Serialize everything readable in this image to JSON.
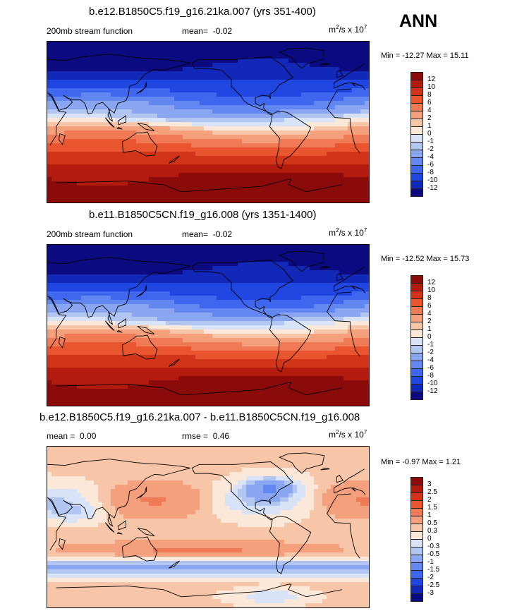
{
  "season": "ANN",
  "colors": {
    "mean_scale": [
      "#0b0a80",
      "#1128b8",
      "#1f46e0",
      "#3e66ef",
      "#6287f1",
      "#8aa6f0",
      "#b2c6f2",
      "#d8e3f7",
      "#fbe8d8",
      "#f7c6a8",
      "#f4a07c",
      "#f07a55",
      "#e8552f",
      "#d2341a",
      "#b41b0f",
      "#8b0b0b"
    ],
    "diff_scale": [
      "#0b0a80",
      "#1128b8",
      "#1f46e0",
      "#3e66ef",
      "#6287f1",
      "#8aa6f0",
      "#b2c6f2",
      "#d8e3f7",
      "#fbe8d8",
      "#f7c6a8",
      "#f4a07c",
      "#f07a55",
      "#e8552f",
      "#d2341a",
      "#b41b0f",
      "#8b0b0b"
    ],
    "coast": "#000000"
  },
  "chart_data": [
    {
      "type": "heatmap",
      "title": "b.e12.B1850C5.f19_g16.21ka.007 (yrs 351-400)",
      "variable_label": "200mb stream function",
      "mean_label": "mean=",
      "mean_value": "-0.02",
      "units_base": "m",
      "units_exp1": "2",
      "units_mid": "/s x 10",
      "units_exp2": "7",
      "min_label": "Min =",
      "min_value": "-12.27",
      "max_label": "Max =",
      "max_value": "15.11",
      "colorbar_levels": [
        "-12",
        "-10",
        "-8",
        "-6",
        "-4",
        "-2",
        "-1",
        "0",
        "1",
        "2",
        "4",
        "6",
        "8",
        "10",
        "12"
      ],
      "field": "zonal",
      "lat_range": [
        -90,
        90
      ],
      "lon_range": [
        0,
        360
      ]
    },
    {
      "type": "heatmap",
      "title": "b.e11.B1850C5CN.f19_g16.008 (yrs 1351-1400)",
      "variable_label": "200mb stream function",
      "mean_label": "mean=",
      "mean_value": "-0.02",
      "units_base": "m",
      "units_exp1": "2",
      "units_mid": "/s x 10",
      "units_exp2": "7",
      "min_label": "Min =",
      "min_value": "-12.52",
      "max_label": "Max =",
      "max_value": "15.73",
      "colorbar_levels": [
        "-12",
        "-10",
        "-8",
        "-6",
        "-4",
        "-2",
        "-1",
        "0",
        "1",
        "2",
        "4",
        "6",
        "8",
        "10",
        "12"
      ],
      "field": "zonal",
      "lat_range": [
        -90,
        90
      ],
      "lon_range": [
        0,
        360
      ]
    },
    {
      "type": "heatmap",
      "title": "b.e12.B1850C5.f19_g16.21ka.007 - b.e11.B1850C5CN.f19_g16.008",
      "mean_label": "mean =",
      "mean_value": "0.00",
      "rmse_label": "rmse =",
      "rmse_value": "0.46",
      "units_base": "m",
      "units_exp1": "2",
      "units_mid": "/s x 10",
      "units_exp2": "7",
      "min_label": "Min =",
      "min_value": "-0.97",
      "max_label": "Max =",
      "max_value": "1.21",
      "colorbar_levels": [
        "-3",
        "-2.5",
        "-2",
        "-1.5",
        "-1",
        "-0.5",
        "-0.3",
        "0",
        "0.3",
        "0.5",
        "1",
        "1.5",
        "2",
        "2.5",
        "3"
      ],
      "field": "diff",
      "lat_range": [
        -90,
        90
      ],
      "lon_range": [
        0,
        360
      ]
    }
  ]
}
